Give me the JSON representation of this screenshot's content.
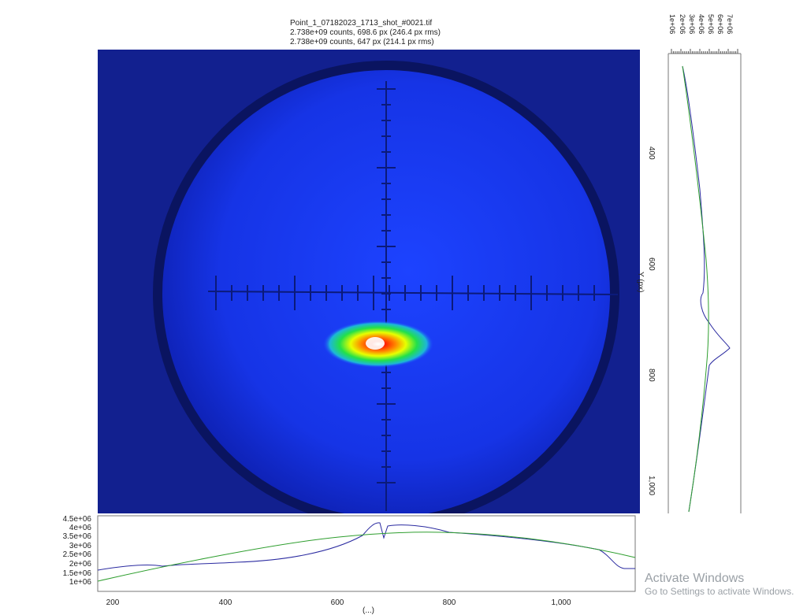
{
  "header": {
    "filename": "Point_1_07182023_1713_shot_#0021.tif",
    "line1": "2.738e+09 counts, 698.6 px (246.4 px rms)",
    "line2": "2.738e+09 counts, 647 px (214.1 px rms)"
  },
  "axes": {
    "x_ticks": [
      "200",
      "400",
      "600",
      "800",
      "1,000"
    ],
    "x_label": "(...)",
    "y_ticks": [
      "400",
      "600",
      "800",
      "1,000"
    ],
    "y_label": "Y (px)",
    "bottom_counts_ticks": [
      "4.5e+06",
      "4e+06",
      "3.5e+06",
      "3e+06",
      "2.5e+06",
      "2e+06",
      "1.5e+06",
      "1e+06"
    ],
    "right_counts_ticks": [
      "1e+06",
      "2e+06",
      "3e+06",
      "4e+06",
      "5e+06",
      "6e+06",
      "7e+06"
    ]
  },
  "profile_colors": {
    "measured": "#2a2aa0",
    "fit": "#2e9e2e"
  },
  "watermark": {
    "title": "Activate Windows",
    "subtitle": "Go to Settings to activate Windows."
  }
}
